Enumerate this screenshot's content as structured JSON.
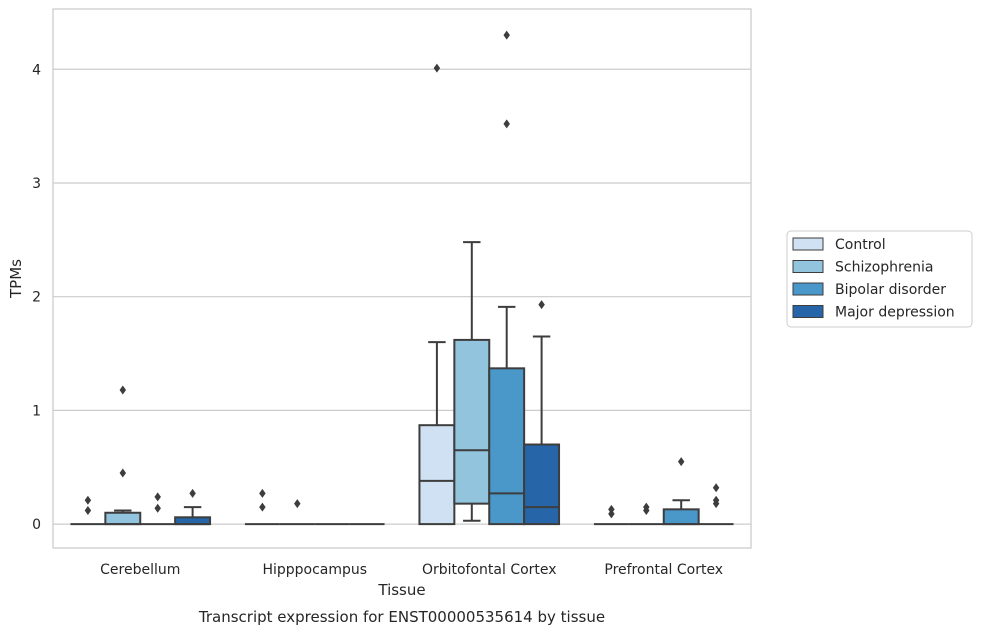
{
  "chart_data": {
    "type": "box",
    "xlabel": "Tissue",
    "ylabel": "TPMs",
    "caption": "Transcript expression for ENST00000535614 by tissue",
    "ylim": [
      -0.21,
      4.53
    ],
    "yticks": [
      0,
      1,
      2,
      3,
      4
    ],
    "grid": "horizontal",
    "legend_position": "right",
    "categories": [
      "Cerebellum",
      "Hipppocampus",
      "Orbitofontal Cortex",
      "Prefrontal Cortex"
    ],
    "series": [
      {
        "name": "Control",
        "color": "#cfe1f2",
        "boxes": [
          {
            "whislo": 0,
            "q1": 0,
            "med": 0,
            "q3": 0,
            "whishi": 0,
            "fliers": [
              0.12,
              0.21
            ]
          },
          {
            "whislo": 0,
            "q1": 0,
            "med": 0,
            "q3": 0,
            "whishi": 0,
            "fliers": [
              0.15,
              0.27
            ]
          },
          {
            "whislo": 0,
            "q1": 0,
            "med": 0.38,
            "q3": 0.87,
            "whishi": 1.6,
            "fliers": [
              4.01
            ]
          },
          {
            "whislo": 0,
            "q1": 0,
            "med": 0,
            "q3": 0,
            "whishi": 0,
            "fliers": [
              0.09,
              0.13
            ]
          }
        ]
      },
      {
        "name": "Schizophrenia",
        "color": "#93c4de",
        "boxes": [
          {
            "whislo": 0,
            "q1": 0,
            "med": 0,
            "q3": 0.1,
            "whishi": 0.12,
            "fliers": [
              0.45,
              1.18
            ]
          },
          {
            "whislo": 0,
            "q1": 0,
            "med": 0,
            "q3": 0,
            "whishi": 0,
            "fliers": [
              0.18
            ]
          },
          {
            "whislo": 0.03,
            "q1": 0.18,
            "med": 0.65,
            "q3": 1.62,
            "whishi": 2.48,
            "fliers": []
          },
          {
            "whislo": 0,
            "q1": 0,
            "med": 0,
            "q3": 0,
            "whishi": 0,
            "fliers": [
              0.12,
              0.15
            ]
          }
        ]
      },
      {
        "name": "Bipolar disorder",
        "color": "#4a98c9",
        "boxes": [
          {
            "whislo": 0,
            "q1": 0,
            "med": 0,
            "q3": 0,
            "whishi": 0,
            "fliers": [
              0.14,
              0.24
            ]
          },
          {
            "whislo": 0,
            "q1": 0,
            "med": 0,
            "q3": 0,
            "whishi": 0,
            "fliers": []
          },
          {
            "whislo": 0,
            "q1": 0,
            "med": 0.27,
            "q3": 1.37,
            "whishi": 1.91,
            "fliers": [
              3.52,
              4.3
            ]
          },
          {
            "whislo": 0,
            "q1": 0,
            "med": 0,
            "q3": 0.13,
            "whishi": 0.21,
            "fliers": [
              0.55
            ]
          }
        ]
      },
      {
        "name": "Major depression",
        "color": "#2666a8",
        "boxes": [
          {
            "whislo": 0,
            "q1": 0,
            "med": 0,
            "q3": 0.06,
            "whishi": 0.15,
            "fliers": [
              0.27
            ]
          },
          {
            "whislo": 0,
            "q1": 0,
            "med": 0,
            "q3": 0,
            "whishi": 0,
            "fliers": []
          },
          {
            "whislo": 0,
            "q1": 0,
            "med": 0.15,
            "q3": 0.7,
            "whishi": 1.65,
            "fliers": [
              1.93
            ]
          },
          {
            "whislo": 0,
            "q1": 0,
            "med": 0,
            "q3": 0,
            "whishi": 0,
            "fliers": [
              0.18,
              0.21,
              0.32
            ]
          }
        ]
      }
    ]
  }
}
